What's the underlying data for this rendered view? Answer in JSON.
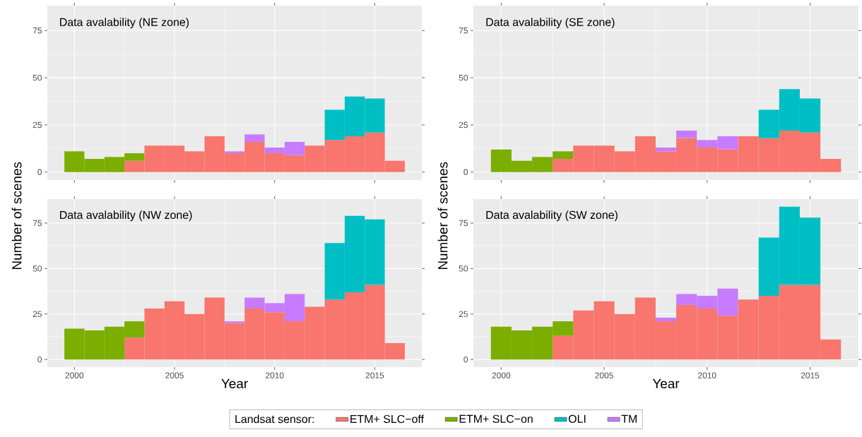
{
  "chart_data": [
    {
      "type": "bar",
      "title": "Data avalability (NE zone)",
      "stacked": true,
      "grid": true,
      "tick_labels": "y",
      "x": [
        2000,
        2001,
        2002,
        2003,
        2004,
        2005,
        2006,
        2007,
        2008,
        2009,
        2010,
        2011,
        2012,
        2013,
        2014,
        2015,
        2016
      ],
      "xlim": [
        1998.65,
        2017.35
      ],
      "xticks": [
        2000,
        2005,
        2010,
        2015
      ],
      "ylim": [
        -4.2,
        88.2
      ],
      "yticks": [
        0,
        25,
        50,
        75
      ],
      "series": [
        {
          "color": "#f8766d",
          "values": [
            null,
            null,
            null,
            6,
            14,
            14,
            11,
            19,
            10,
            16,
            10,
            9,
            14,
            17,
            19,
            21,
            6
          ]
        },
        {
          "color": "#7cae00",
          "values": [
            11,
            7,
            8,
            4,
            null,
            null,
            null,
            null,
            null,
            null,
            null,
            null,
            null,
            null,
            null,
            null,
            null
          ]
        },
        {
          "color": "#00bfc4",
          "values": [
            null,
            null,
            null,
            null,
            null,
            null,
            null,
            null,
            null,
            null,
            null,
            null,
            null,
            16,
            21,
            18,
            null
          ]
        },
        {
          "color": "#c77cff",
          "values": [
            null,
            null,
            null,
            null,
            null,
            null,
            null,
            null,
            1,
            4,
            3,
            7,
            null,
            null,
            null,
            null,
            null
          ]
        }
      ]
    },
    {
      "type": "bar",
      "title": "Data avalability (SE zone)",
      "stacked": true,
      "grid": true,
      "tick_labels": "y",
      "x": [
        2000,
        2001,
        2002,
        2003,
        2004,
        2005,
        2006,
        2007,
        2008,
        2009,
        2010,
        2011,
        2012,
        2013,
        2014,
        2015,
        2016
      ],
      "xlim": [
        1998.65,
        2017.35
      ],
      "xticks": [
        2000,
        2005,
        2010,
        2015
      ],
      "ylim": [
        -4.2,
        88.2
      ],
      "yticks": [
        0,
        25,
        50,
        75
      ],
      "series": [
        {
          "color": "#f8766d",
          "values": [
            null,
            null,
            null,
            7,
            14,
            14,
            11,
            19,
            11,
            18,
            13,
            12,
            19,
            18,
            22,
            21,
            7
          ]
        },
        {
          "color": "#7cae00",
          "values": [
            12,
            6,
            8,
            4,
            null,
            null,
            null,
            null,
            null,
            null,
            null,
            null,
            null,
            null,
            null,
            null,
            null
          ]
        },
        {
          "color": "#00bfc4",
          "values": [
            null,
            null,
            null,
            null,
            null,
            null,
            null,
            null,
            null,
            null,
            null,
            null,
            null,
            15,
            22,
            18,
            null
          ]
        },
        {
          "color": "#c77cff",
          "values": [
            null,
            null,
            null,
            null,
            null,
            null,
            null,
            null,
            2,
            4,
            4,
            7,
            null,
            null,
            null,
            null,
            null
          ]
        }
      ]
    },
    {
      "type": "bar",
      "title": "Data avalability (NW zone)",
      "xlabel": "Year",
      "ylabel": "Number of scenes",
      "stacked": true,
      "grid": true,
      "x": [
        2000,
        2001,
        2002,
        2003,
        2004,
        2005,
        2006,
        2007,
        2008,
        2009,
        2010,
        2011,
        2012,
        2013,
        2014,
        2015,
        2016
      ],
      "xlim": [
        1998.65,
        2017.35
      ],
      "xticks": [
        2000,
        2005,
        2010,
        2015
      ],
      "ylim": [
        -4.2,
        88.2
      ],
      "yticks": [
        0,
        25,
        50,
        75
      ],
      "series": [
        {
          "color": "#f8766d",
          "values": [
            null,
            null,
            null,
            12,
            28,
            32,
            25,
            34,
            20,
            28,
            26,
            21,
            29,
            33,
            37,
            41,
            9
          ]
        },
        {
          "color": "#7cae00",
          "values": [
            17,
            16,
            18,
            9,
            null,
            null,
            null,
            null,
            null,
            null,
            null,
            null,
            null,
            null,
            null,
            null,
            null
          ]
        },
        {
          "color": "#00bfc4",
          "values": [
            null,
            null,
            null,
            null,
            null,
            null,
            null,
            null,
            null,
            null,
            null,
            null,
            null,
            31,
            42,
            36,
            null
          ]
        },
        {
          "color": "#c77cff",
          "values": [
            null,
            null,
            null,
            null,
            null,
            null,
            null,
            null,
            1,
            6,
            5,
            15,
            null,
            null,
            null,
            null,
            null
          ]
        }
      ]
    },
    {
      "type": "bar",
      "title": "Data avalability (SW zone)",
      "xlabel": "Year",
      "ylabel": "Number of scenes",
      "stacked": true,
      "grid": true,
      "legend": "bottom",
      "legend_title": "Landsat sensor:",
      "x": [
        2000,
        2001,
        2002,
        2003,
        2004,
        2005,
        2006,
        2007,
        2008,
        2009,
        2010,
        2011,
        2012,
        2013,
        2014,
        2015,
        2016
      ],
      "xlim": [
        1998.65,
        2017.35
      ],
      "xticks": [
        2000,
        2005,
        2010,
        2015
      ],
      "ylim": [
        -4.2,
        88.2
      ],
      "yticks": [
        0,
        25,
        50,
        75
      ],
      "series": [
        {
          "name": "ETM+ SLC−off",
          "color": "#f8766d",
          "values": [
            null,
            null,
            null,
            13,
            27,
            32,
            25,
            34,
            21,
            30,
            28,
            24,
            33,
            35,
            41,
            41,
            11
          ]
        },
        {
          "name": "ETM+ SLC−on",
          "color": "#7cae00",
          "values": [
            18,
            16,
            18,
            8,
            null,
            null,
            null,
            null,
            null,
            null,
            null,
            null,
            null,
            null,
            null,
            null,
            null
          ]
        },
        {
          "name": "OLI",
          "color": "#00bfc4",
          "values": [
            null,
            null,
            null,
            null,
            null,
            null,
            null,
            null,
            null,
            null,
            null,
            null,
            null,
            32,
            43,
            37,
            null
          ]
        },
        {
          "name": "TM",
          "color": "#c77cff",
          "values": [
            null,
            null,
            null,
            null,
            null,
            null,
            null,
            null,
            2,
            6,
            7,
            15,
            null,
            null,
            null,
            null,
            null
          ]
        }
      ]
    }
  ]
}
